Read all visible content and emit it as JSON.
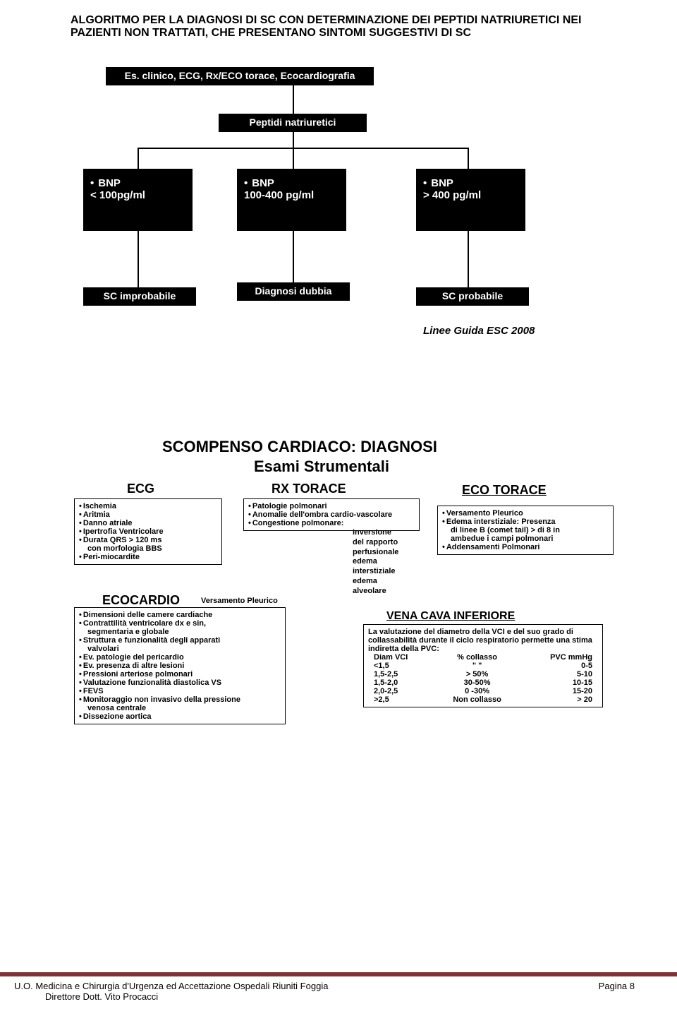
{
  "colors": {
    "box_bg": "#000000",
    "box_fg": "#ffffff",
    "page_bg": "#ffffff",
    "rule": "#7f3335",
    "text": "#000000"
  },
  "fonts": {
    "title_size": 16,
    "label_size": 13,
    "small_size": 11,
    "section_size": 22
  },
  "flow": {
    "title": "ALGORITMO PER LA DIAGNOSI DI SC CON DETERMINAZIONE DEI PEPTIDI NATRIURETICI NEI PAZIENTI NON TRATTATI, CHE PRESENTANO SINTOMI SUGGESTIVI DI SC",
    "step1": "Es. clinico, ECG, Rx/ECO torace, Ecocardiografia",
    "step2": "Peptidi natriuretici",
    "bnp_low": {
      "l1": "BNP",
      "l2": "< 100pg/ml"
    },
    "bnp_mid": {
      "l1": "BNP",
      "l2": "100-400 pg/ml"
    },
    "bnp_high": {
      "l1": "BNP",
      "l2": "> 400 pg/ml"
    },
    "out_low": "SC  improbabile",
    "out_mid": "Diagnosi dubbia",
    "out_high": "SC  probabile",
    "ref": "Linee Guida ESC 2008"
  },
  "exam": {
    "title_l1": "SCOMPENSO CARDIACO: DIAGNOSI",
    "title_l2": "Esami Strumentali",
    "ecg": {
      "label": "ECG",
      "items": [
        "Ischemia",
        "Aritmia",
        "Danno atriale",
        "Ipertrofia Ventricolare",
        "Durata QRS > 120 ms",
        "  con morfologia BBS",
        "Peri-miocardite"
      ]
    },
    "ecocardio": {
      "label": "ECOCARDIO",
      "aside": "Versamento Pleurico",
      "items": [
        "Dimensioni delle camere cardiache",
        "Contrattilità ventricolare dx e sin,",
        "  segmentaria e globale",
        "Struttura e funzionalità degli apparati",
        "  valvolari",
        "Ev. patologie del pericardio",
        "Ev. presenza di altre lesioni",
        "Pressioni arteriose polmonari",
        "Valutazione funzionalità diastolica VS",
        "FEVS",
        "Monitoraggio non invasivo della pressione",
        "  venosa centrale",
        "Dissezione aortica"
      ]
    },
    "rx": {
      "label": "RX TORACE",
      "items": [
        "Patologie polmonari",
        "Anomalie dell'ombra cardio-vascolare",
        "Congestione polmonare:"
      ],
      "sub": [
        "inversione",
        "del rapporto",
        "perfusionale",
        "edema",
        "interstiziale",
        "edema",
        "alveolare"
      ]
    },
    "eco_torace": {
      "label": "ECO TORACE",
      "items": [
        "Versamento Pleurico",
        "Edema interstiziale: Presenza",
        "  di linee B  (comet tail) > di 8 in",
        "  ambedue i campi polmonari",
        "Addensamenti Polmonari"
      ]
    },
    "vci": {
      "label": "VENA CAVA INFERIORE",
      "intro": "La valutazione del diametro della VCI e del suo grado di collassabilità durante il ciclo respiratorio permette una stima indiretta della PVC:",
      "hdr": [
        "Diam VCI",
        "% collasso",
        "PVC mmHg"
      ],
      "rows": [
        [
          "<1,5",
          "\"   \"",
          "0-5"
        ],
        [
          "1,5-2,5",
          "> 50%",
          "5-10"
        ],
        [
          "1,5-2,0",
          "30-50%",
          "10-15"
        ],
        [
          "2,0-2,5",
          "0 -30%",
          "15-20"
        ],
        [
          ">2,5",
          "Non collasso",
          "> 20"
        ]
      ]
    }
  },
  "footer": {
    "l1": "U.O. Medicina e Chirurgia d'Urgenza ed Accettazione Ospedali Riuniti Foggia",
    "l2": "Direttore Dott. Vito Procacci",
    "pg": "Pagina 8"
  }
}
